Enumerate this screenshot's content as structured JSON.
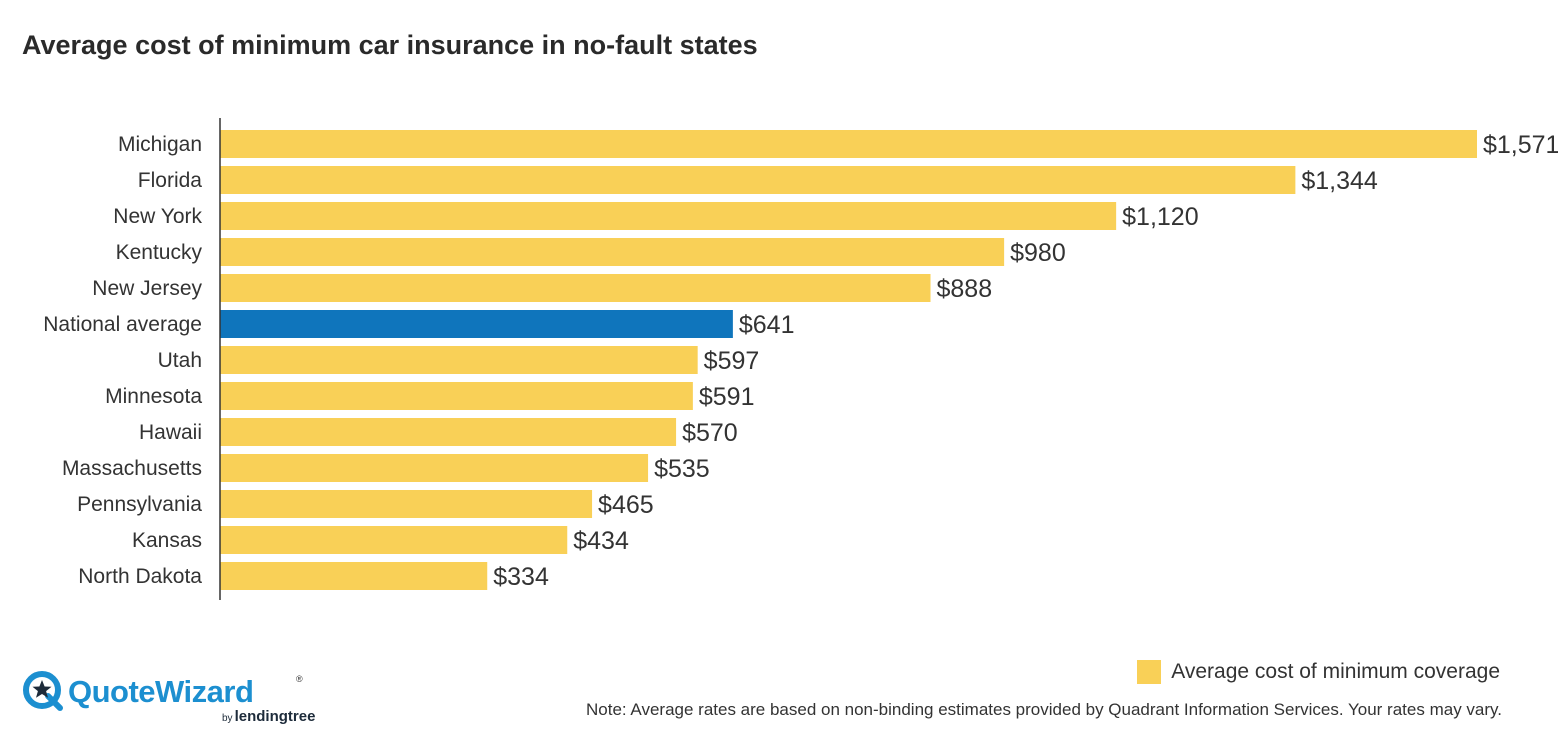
{
  "title": "Average cost of minimum car insurance in no-fault states",
  "colors": {
    "bar": "#f9d057",
    "highlight": "#0f75bc",
    "axis": "#333333",
    "brand_blue": "#1c8fd0"
  },
  "chart_data": {
    "type": "bar",
    "orientation": "horizontal",
    "title": "Average cost of minimum car insurance in no-fault states",
    "categories": [
      "Michigan",
      "Florida",
      "New York",
      "Kentucky",
      "New Jersey",
      "National average",
      "Utah",
      "Minnesota",
      "Hawaii",
      "Massachusetts",
      "Pennsylvania",
      "Kansas",
      "North Dakota"
    ],
    "series": [
      {
        "name": "Average cost of minimum coverage",
        "values": [
          1571,
          1344,
          1120,
          980,
          888,
          641,
          597,
          591,
          570,
          535,
          465,
          434,
          334
        ]
      }
    ],
    "value_labels": [
      "$1,571",
      "$1,344",
      "$1,120",
      "$980",
      "$888",
      "$641",
      "$597",
      "$591",
      "$570",
      "$535",
      "$465",
      "$434",
      "$334"
    ],
    "highlight_category": "National average",
    "xlabel": "",
    "ylabel": "",
    "xlim": [
      0,
      1571
    ],
    "grid": false,
    "legend_position": "bottom-right"
  },
  "legend": {
    "label": "Average cost of minimum coverage"
  },
  "note": "Note: Average rates are based on non-binding estimates provided by Quadrant Information Services. Your rates may vary.",
  "logo": {
    "brand": "QuoteWizard",
    "trademark": "®",
    "by": "by",
    "parent": "lendingtree"
  }
}
